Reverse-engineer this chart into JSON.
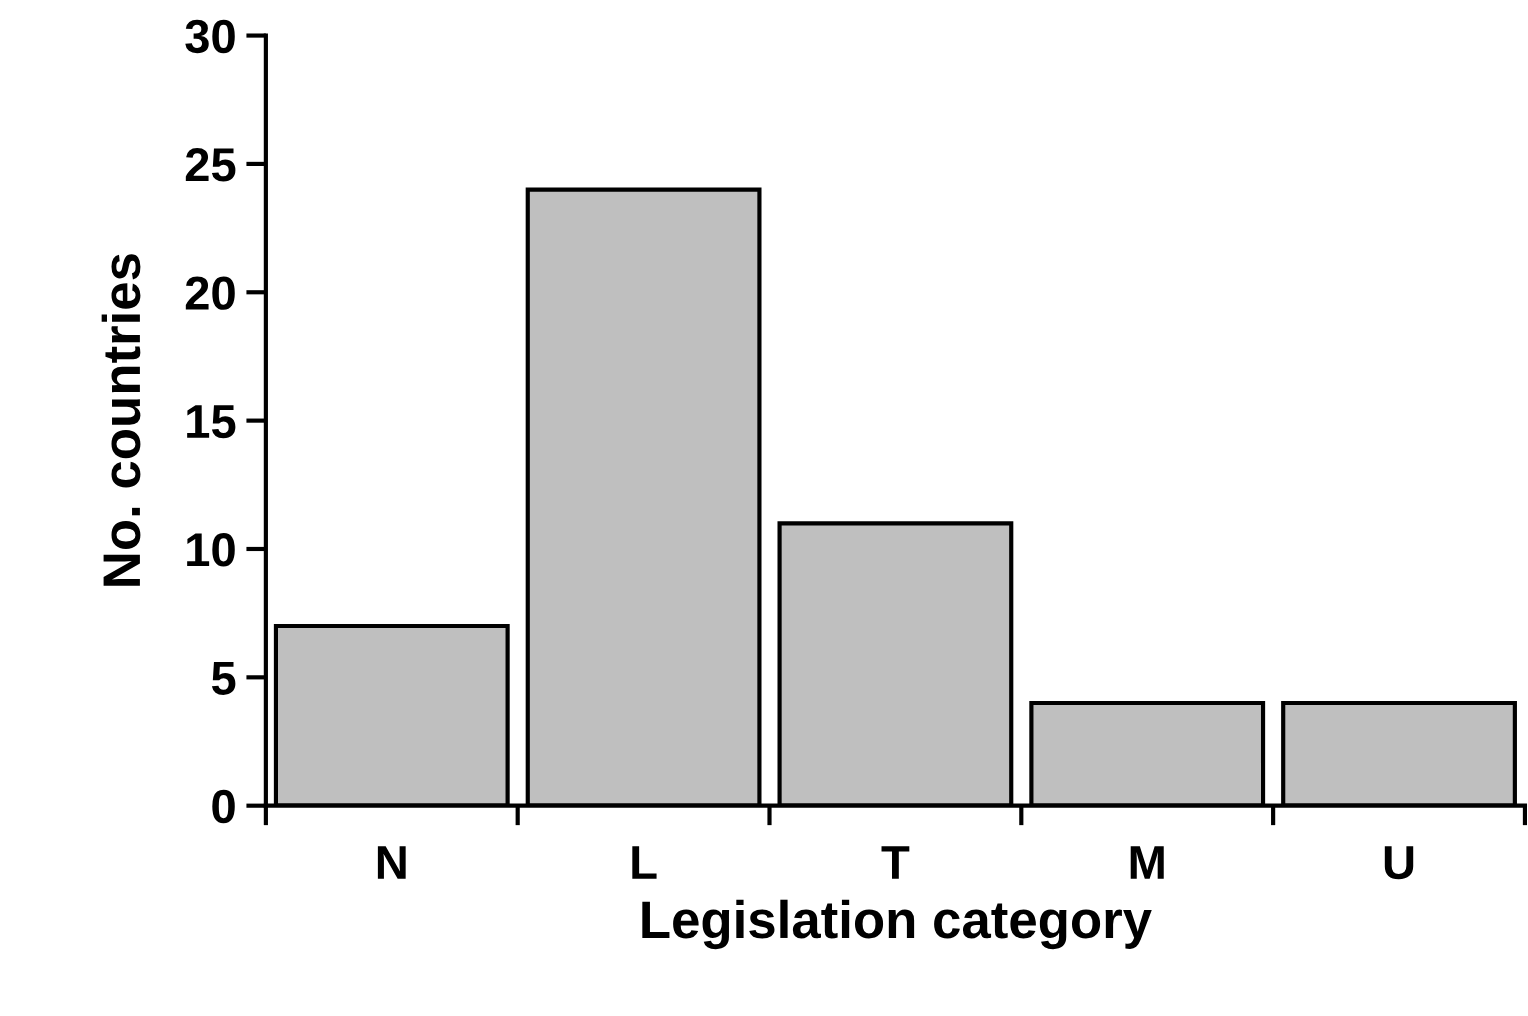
{
  "chart_data": {
    "type": "bar",
    "xlabel": "Legislation category",
    "ylabel": "No. countries",
    "categories": [
      "N",
      "L",
      "T",
      "M",
      "U"
    ],
    "values": [
      7,
      24,
      11,
      4,
      4
    ],
    "color": "#bfbfbf",
    "ylim": [
      0,
      30
    ],
    "yticks": [
      0,
      5,
      10,
      15,
      20,
      25,
      30
    ],
    "grid": false,
    "legend": false
  }
}
